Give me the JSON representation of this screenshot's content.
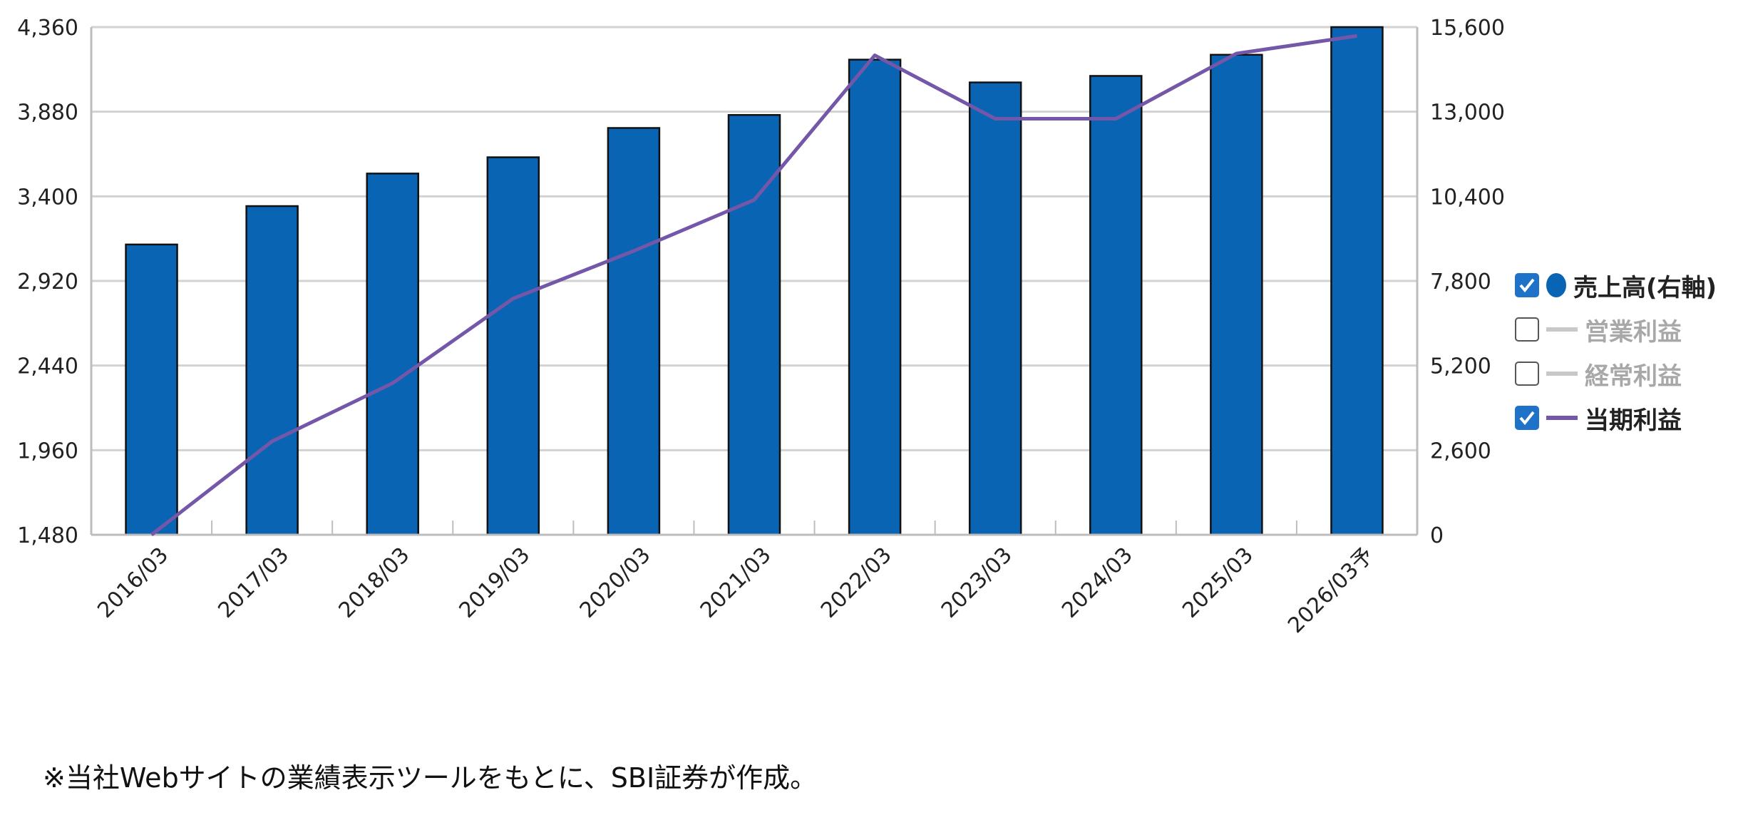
{
  "chart_data": {
    "type": "bar",
    "categories": [
      "2016/03",
      "2017/03",
      "2018/03",
      "2019/03",
      "2020/03",
      "2021/03",
      "2022/03",
      "2023/03",
      "2024/03",
      "2025/03",
      "2026/03予"
    ],
    "series": [
      {
        "name": "売上高(右軸)",
        "type": "bar",
        "axis": "right",
        "color": "#0A64B4",
        "values": [
          8920,
          10100,
          11100,
          11600,
          12500,
          12900,
          14600,
          13900,
          14100,
          14750,
          15600
        ]
      },
      {
        "name": "当期利益",
        "type": "line",
        "axis": "left",
        "color": "#7457A8",
        "values": [
          1480,
          2010,
          2340,
          2820,
          3090,
          3380,
          4200,
          3840,
          3840,
          4210,
          4310
        ]
      }
    ],
    "left_axis": {
      "ticks": [
        "4,360",
        "3,880",
        "3,400",
        "2,920",
        "2,440",
        "1,960",
        "1,480"
      ],
      "min": 1480,
      "max": 4360
    },
    "right_axis": {
      "ticks": [
        "15,600",
        "13,000",
        "10,400",
        "7,800",
        "5,200",
        "2,600",
        "0"
      ],
      "min": 0,
      "max": 15600
    },
    "grid": true,
    "legend_position": "right"
  },
  "legend": [
    {
      "label": "売上高(右軸)",
      "checked": true,
      "marker": "dot",
      "color": "#0A64B4"
    },
    {
      "label": "営業利益",
      "checked": false,
      "marker": "line",
      "color": "#c8c8c8"
    },
    {
      "label": "経常利益",
      "checked": false,
      "marker": "line",
      "color": "#c8c8c8"
    },
    {
      "label": "当期利益",
      "checked": true,
      "marker": "line",
      "color": "#7457A8"
    }
  ],
  "note": "※当社Webサイトの業績表示ツールをもとに、SBI証券が作成。"
}
